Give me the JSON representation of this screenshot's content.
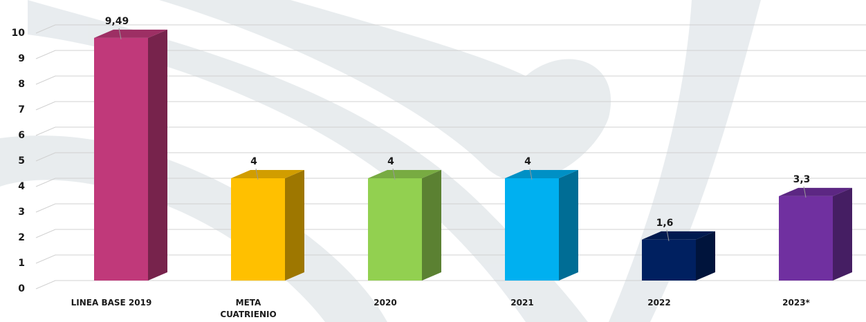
{
  "chart_data": {
    "type": "bar3d",
    "categories": [
      "LINEA BASE 2019",
      "META CUATRIENIO",
      "2020",
      "2021",
      "2022",
      "2023*"
    ],
    "values": [
      9.49,
      4,
      4,
      4,
      1.6,
      3.3
    ],
    "value_labels": [
      "9,49",
      "4",
      "4",
      "4",
      "1,6",
      "3,3"
    ],
    "colors": [
      "#C0397A",
      "#FFC000",
      "#92D050",
      "#00B0F0",
      "#002060",
      "#7030A0"
    ],
    "ylim": [
      0,
      10
    ],
    "yticks": [
      0,
      1,
      2,
      3,
      4,
      5,
      6,
      7,
      8,
      9,
      10
    ],
    "grid": true
  }
}
